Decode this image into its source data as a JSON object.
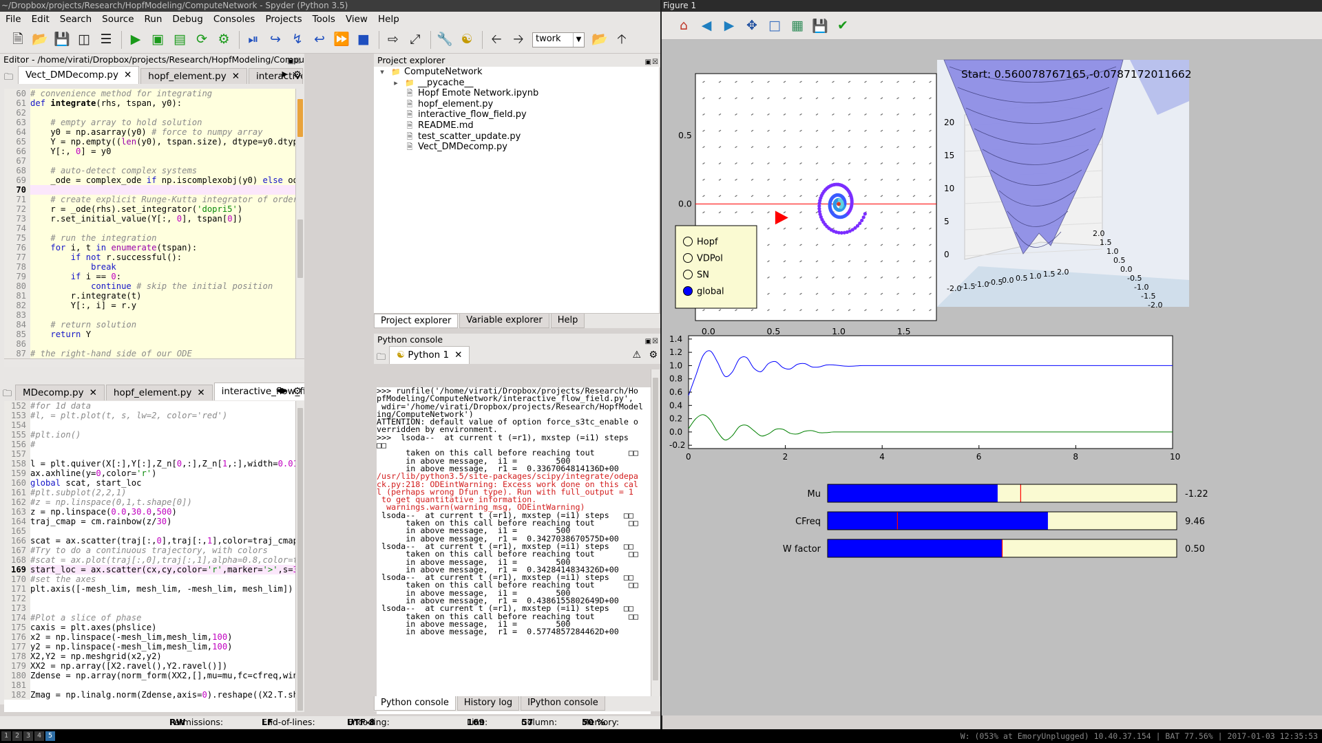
{
  "spyder": {
    "title": "~/Dropbox/projects/Research/HopfModeling/ComputeNetwork - Spyder (Python 3.5)",
    "menu": [
      "File",
      "Edit",
      "Search",
      "Source",
      "Run",
      "Debug",
      "Consoles",
      "Projects",
      "Tools",
      "View",
      "Help"
    ],
    "workdir": "twork",
    "editor": {
      "title": "Editor - /home/virati/Dropbox/projects/Research/HopfModeling/ComputeNetwork/...",
      "tabs": [
        "Vect_DMDecomp.py",
        "hopf_element.py",
        "interactive_flow_field"
      ],
      "tabs2": [
        "MDecomp.py",
        "hopf_element.py",
        "interactive_flow_field.py"
      ]
    },
    "project_explorer": {
      "title": "Project explorer",
      "root": "ComputeNetwork",
      "items": [
        "__pycache__",
        "Hopf Emote Network.ipynb",
        "hopf_element.py",
        "interactive_flow_field.py",
        "README.md",
        "test_scatter_update.py",
        "Vect_DMDecomp.py"
      ],
      "tabs": [
        "Project explorer",
        "Variable explorer",
        "Help"
      ]
    },
    "python_console": {
      "title": "Python console",
      "tab": "Python 1",
      "tabs": [
        "Python console",
        "History log",
        "IPython console"
      ]
    },
    "status": {
      "permissions_label": "Permissions:",
      "permissions": "RW",
      "eol_label": "End-of-lines:",
      "eol": "LF",
      "encoding_label": "Encoding:",
      "encoding": "UTF-8",
      "line_label": "Line:",
      "line": "169",
      "column_label": "Column:",
      "column": "57",
      "memory_label": "Memory:",
      "memory": "50 %"
    }
  },
  "figure": {
    "title": "Figure 1",
    "radio": [
      "Hopf",
      "VDPol",
      "SN",
      "global"
    ],
    "selected": "global",
    "start_text": "Start: 0.560078767165,-0.0787172011662",
    "sliders": [
      {
        "label": "Mu",
        "value_text": "-1.22",
        "fill": 0.487,
        "marker": 0.553
      },
      {
        "label": "CFreq",
        "value_text": "9.46",
        "fill": 0.631,
        "marker": 0.2
      },
      {
        "label": "W factor",
        "value_text": "0.50",
        "fill": 0.5,
        "marker": 0.5
      }
    ],
    "colors": {
      "slider_fill": "#0000ff",
      "slider_bg": "#fafad2",
      "marker": "#ff0000",
      "panel_bg": "#bfbfbf",
      "series1": "#0000ff",
      "series2": "#008000",
      "trajectory": "#7b2dff"
    }
  },
  "chart_data": [
    {
      "type": "scatter",
      "title": "",
      "xlim": [
        -0.1,
        1.75
      ],
      "ylim": [
        -0.85,
        0.95
      ],
      "xticks": [
        "0.0",
        "0.5",
        "1.0",
        "1.5"
      ],
      "yticks": [
        "0.5",
        "0.0"
      ],
      "series": [
        {
          "x": [
            0.98,
            0.9,
            0.8,
            0.73,
            0.76,
            0.84,
            0.95,
            1.05,
            1.12,
            1.1,
            1.04,
            0.97,
            0.93,
            0.92,
            0.96,
            1.03,
            1.07,
            1.05,
            1.0
          ],
          "y": [
            0.28,
            0.26,
            0.18,
            0.02,
            -0.14,
            -0.24,
            -0.28,
            -0.26,
            -0.15,
            0.02,
            0.12,
            0.12,
            0.05,
            -0.06,
            -0.12,
            -0.1,
            -0.02,
            0.04,
            0.0
          ]
        }
      ],
      "start_marker": [
        0.56,
        -0.1
      ],
      "hline": 0.0
    },
    {
      "type": "line",
      "title": "",
      "xlim": [
        0,
        10
      ],
      "ylim": [
        -0.25,
        1.45
      ],
      "xticks": [
        "0",
        "2",
        "4",
        "6",
        "8",
        "10"
      ],
      "yticks": [
        "1.4",
        "1.2",
        "1.0",
        "0.8",
        "0.6",
        "0.4",
        "0.2",
        "0.0",
        "-0.2"
      ],
      "x": [
        0,
        0.15,
        0.3,
        0.45,
        0.6,
        0.75,
        0.9,
        1.05,
        1.2,
        1.35,
        1.5,
        1.65,
        1.8,
        1.95,
        2.1,
        2.25,
        2.4,
        2.55,
        2.7,
        2.85,
        3.0,
        3.3,
        3.6,
        4,
        5,
        6,
        7,
        8,
        9,
        10
      ],
      "series": [
        {
          "values": [
            0.55,
            0.85,
            1.15,
            1.22,
            1.05,
            0.84,
            0.9,
            1.1,
            1.12,
            0.96,
            0.91,
            1.03,
            1.06,
            0.97,
            0.95,
            1.02,
            1.03,
            0.98,
            0.98,
            1.01,
            1.01,
            0.99,
            1.0,
            1.0,
            1.0,
            1.0,
            1.0,
            1.0,
            1.0,
            1.0
          ]
        },
        {
          "values": [
            0.05,
            0.2,
            0.26,
            0.18,
            0.0,
            -0.12,
            -0.06,
            0.08,
            0.1,
            0.02,
            -0.06,
            -0.03,
            0.04,
            0.04,
            -0.02,
            -0.03,
            0.01,
            0.02,
            -0.01,
            -0.01,
            0.0,
            0.0,
            0.0,
            0.0,
            0.0,
            0.0,
            0.0,
            0.0,
            0.0,
            0.0
          ]
        }
      ]
    },
    {
      "type": "surface",
      "zticks": [
        "20",
        "15",
        "10",
        "5",
        "0"
      ],
      "xticks": [
        "-2.0",
        "-1.5",
        "-1.0",
        "-0.5",
        "0.0",
        "0.5",
        "1.0",
        "1.5",
        "2.0"
      ],
      "yticks": [
        "-2.0",
        "-1.5",
        "-1.0",
        "-0.5",
        "0.0",
        "0.5",
        "1.0",
        "1.5",
        "2.0"
      ]
    }
  ],
  "taskbar": {
    "workspaces": [
      "1",
      "2",
      "3",
      "4",
      "5"
    ],
    "tray": "W: (053% at EmoryUnplugged) 10.40.37.154 | BAT 77.56% | 2017-01-03 12:35:53"
  }
}
